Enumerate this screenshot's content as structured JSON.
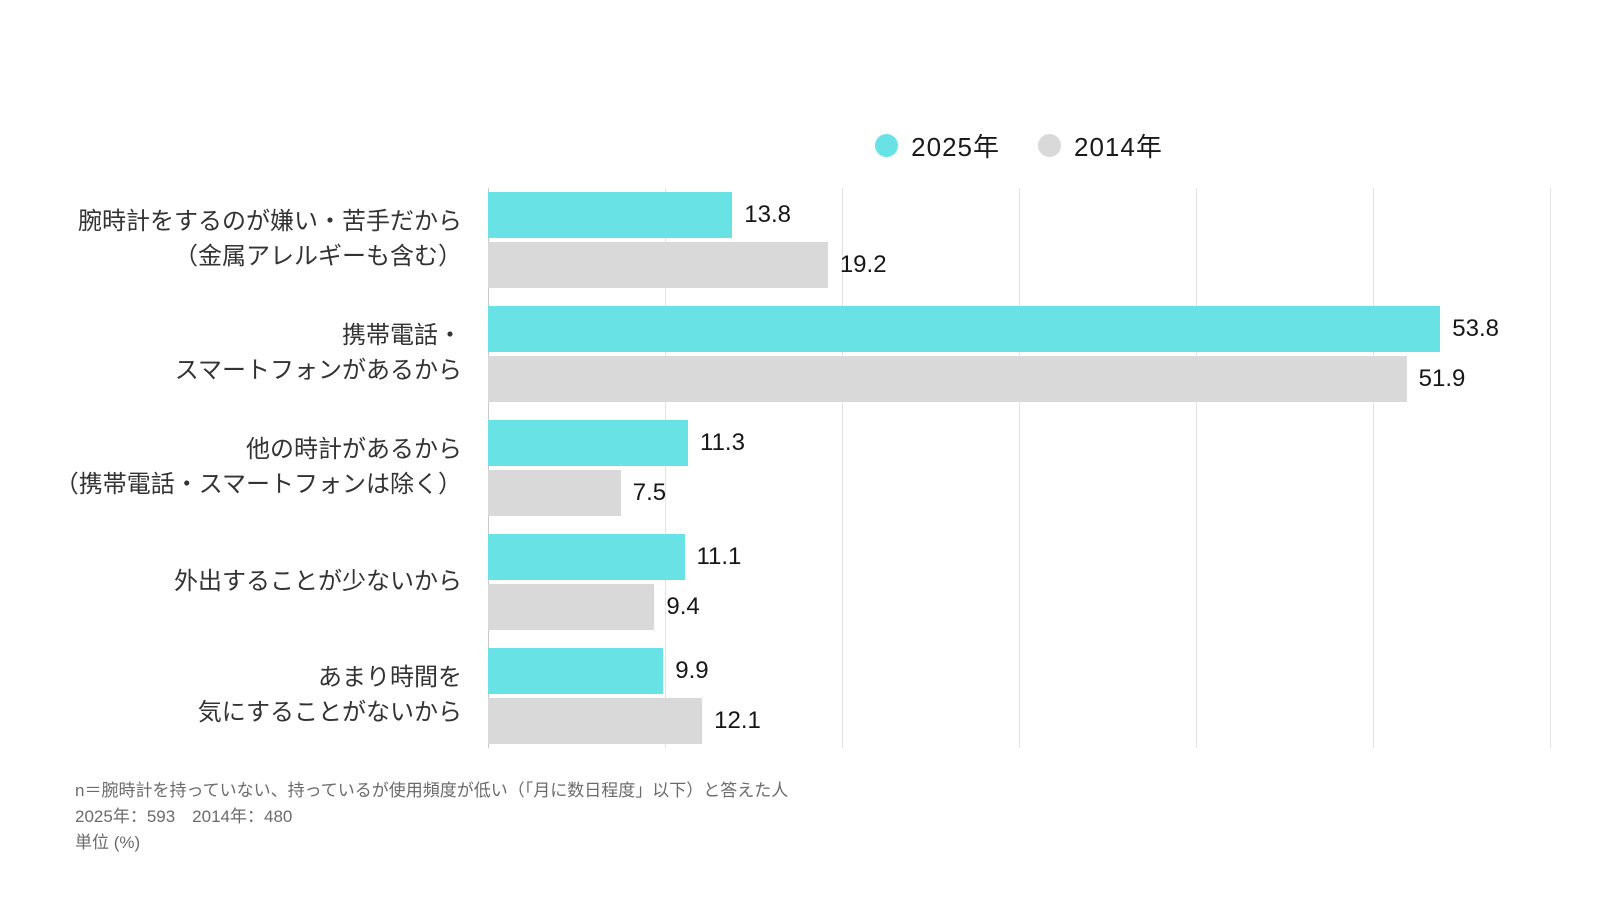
{
  "chart_data": {
    "type": "bar",
    "orientation": "horizontal",
    "title": "",
    "categories": [
      "腕時計をするのが嫌い・苦手だから\n（金属アレルギーも含む）",
      "携帯電話・\nスマートフォンがあるから",
      "他の時計があるから\n（携帯電話・スマートフォンは除く）",
      "外出することが少ないから",
      "あまり時間を\n気にすることがないから"
    ],
    "series": [
      {
        "name": "2025年",
        "color": "#68e2e4",
        "values": [
          13.8,
          53.8,
          11.3,
          11.1,
          9.9
        ]
      },
      {
        "name": "2014年",
        "color": "#d9d9d9",
        "values": [
          19.2,
          51.9,
          7.5,
          9.4,
          12.1
        ]
      }
    ],
    "xlim": [
      0,
      60
    ],
    "grid_step": 10,
    "grid": true,
    "legend_position": "top-center",
    "value_labels": true,
    "unit": "%"
  },
  "footnote": {
    "line1": "n＝腕時計を持っていない、持っているが使用頻度が低い（「月に数日程度」以下）と答えた人",
    "line2": "2025年：593　2014年：480",
    "line3": "単位 (%)"
  },
  "colors": {
    "accent_2025": "#68e2e4",
    "accent_2014": "#d9d9d9",
    "gridline": "#e3e3e3",
    "axis_line": "#c9c9c9",
    "category_text": "#333333",
    "value_text": "#161616",
    "footnote_text": "#6b6b6b",
    "background": "#ffffff"
  }
}
